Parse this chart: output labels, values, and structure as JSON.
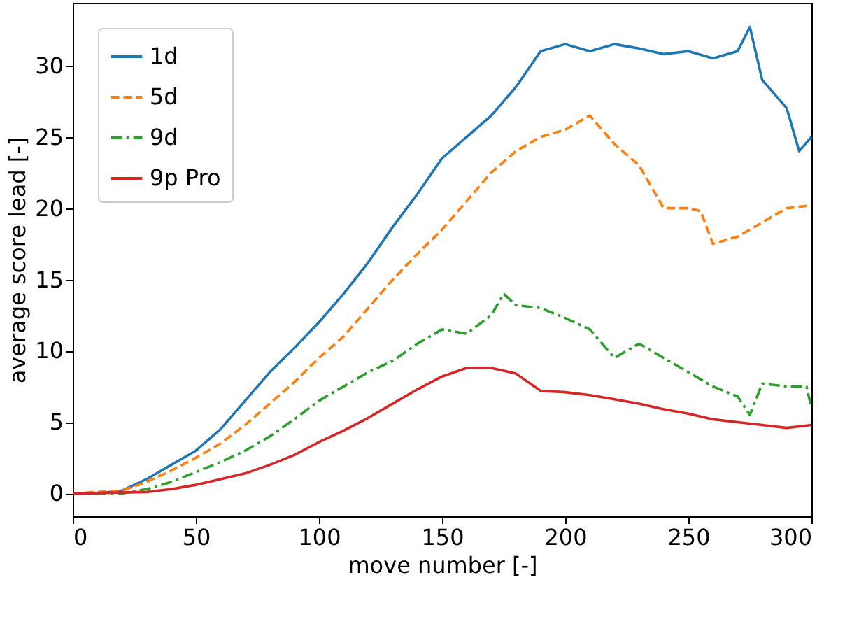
{
  "chart_data": {
    "type": "line",
    "xlabel": "move number [-]",
    "ylabel": "average score lead [-]",
    "xlim": [
      0,
      300
    ],
    "xticks": [
      0,
      50,
      100,
      150,
      200,
      250,
      300
    ],
    "ylim": [
      -1.6,
      34.4
    ],
    "yticks": [
      0,
      5,
      10,
      15,
      20,
      25,
      30
    ],
    "grid": false,
    "legend": "top left",
    "marker": "none",
    "series": [
      {
        "name": "1d",
        "color": "#1f77b4",
        "line_style": "solid",
        "x": [
          0,
          10,
          20,
          30,
          40,
          50,
          60,
          70,
          80,
          90,
          100,
          110,
          120,
          130,
          140,
          150,
          160,
          170,
          180,
          190,
          200,
          210,
          220,
          230,
          240,
          250,
          260,
          270,
          275,
          280,
          290,
          295,
          300
        ],
        "values": [
          0,
          0,
          0.2,
          1,
          2,
          3,
          4.5,
          6.5,
          8.5,
          10.2,
          12,
          14,
          16.2,
          18.7,
          21,
          23.5,
          25,
          26.5,
          28.5,
          31,
          31.5,
          31,
          31.5,
          31.2,
          30.8,
          31,
          30.5,
          31,
          32.7,
          29,
          27,
          24,
          25
        ]
      },
      {
        "name": "5d",
        "color": "#ff7f0e",
        "line_style": "dashed",
        "x": [
          0,
          20,
          30,
          40,
          50,
          60,
          70,
          80,
          90,
          100,
          110,
          120,
          130,
          140,
          150,
          160,
          170,
          180,
          190,
          200,
          210,
          220,
          230,
          240,
          250,
          255,
          260,
          270,
          280,
          290,
          300
        ],
        "values": [
          0,
          0.2,
          0.8,
          1.6,
          2.5,
          3.5,
          4.8,
          6.3,
          7.8,
          9.5,
          11,
          13,
          15,
          16.8,
          18.5,
          20.5,
          22.5,
          24,
          25,
          25.5,
          26.5,
          24.5,
          23,
          20,
          20,
          19.8,
          17.5,
          18,
          19,
          20,
          20.2
        ]
      },
      {
        "name": "9d",
        "color": "#2ca02c",
        "line_style": "dashdot",
        "x": [
          0,
          20,
          30,
          40,
          50,
          60,
          70,
          80,
          90,
          100,
          110,
          120,
          130,
          140,
          150,
          160,
          170,
          175,
          180,
          190,
          200,
          210,
          220,
          230,
          240,
          250,
          260,
          270,
          275,
          280,
          290,
          298,
          300
        ],
        "values": [
          0,
          0,
          0.3,
          0.8,
          1.5,
          2.2,
          3,
          4,
          5.2,
          6.5,
          7.5,
          8.5,
          9.3,
          10.5,
          11.5,
          11.2,
          12.5,
          14,
          13.2,
          13,
          12.3,
          11.5,
          9.5,
          10.5,
          9.5,
          8.5,
          7.5,
          6.8,
          5.5,
          7.7,
          7.5,
          7.5,
          6
        ]
      },
      {
        "name": "9p Pro",
        "color": "#d62728",
        "line_style": "solid",
        "x": [
          0,
          30,
          40,
          50,
          60,
          70,
          80,
          90,
          100,
          110,
          120,
          130,
          140,
          150,
          160,
          170,
          180,
          190,
          200,
          210,
          220,
          230,
          240,
          250,
          260,
          270,
          280,
          290,
          300
        ],
        "values": [
          0,
          0.1,
          0.3,
          0.6,
          1,
          1.4,
          2,
          2.7,
          3.6,
          4.4,
          5.3,
          6.3,
          7.3,
          8.2,
          8.8,
          8.8,
          8.4,
          7.2,
          7.1,
          6.9,
          6.6,
          6.3,
          5.9,
          5.6,
          5.2,
          5,
          4.8,
          4.6,
          4.8
        ]
      }
    ]
  }
}
